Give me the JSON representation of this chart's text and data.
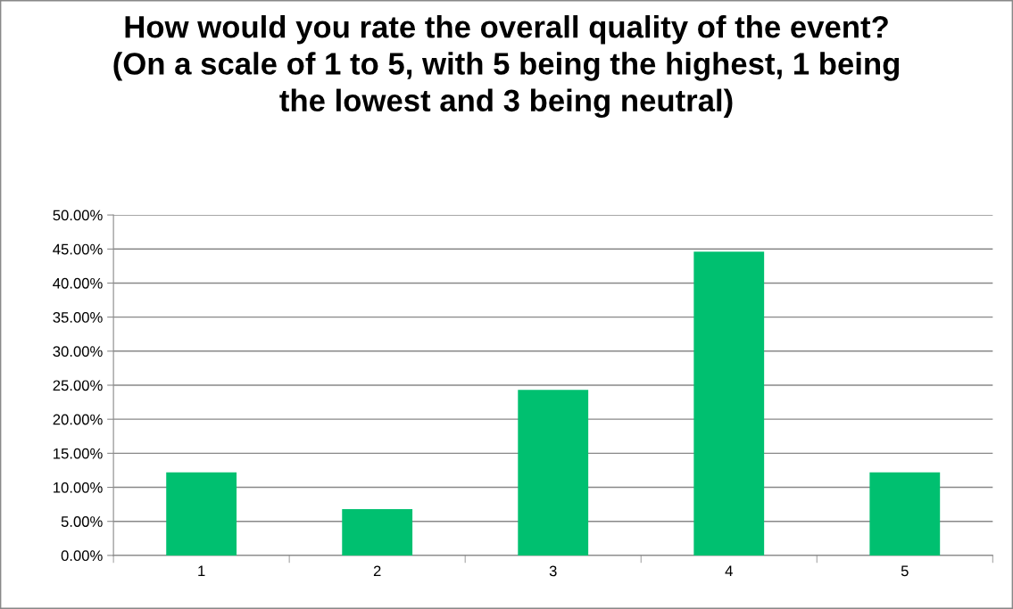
{
  "chart_data": {
    "type": "bar",
    "title": "How would you rate the overall quality of the event?\n(On a scale of 1 to 5, with 5 being the highest, 1 being\nthe lowest and 3 being neutral)",
    "categories": [
      "1",
      "2",
      "3",
      "4",
      "5"
    ],
    "values": [
      12.2,
      6.8,
      24.3,
      44.6,
      12.2
    ],
    "color": "#00c070",
    "ylim": [
      0,
      50
    ],
    "yticks": [
      {
        "value": 0,
        "label": "0.00%"
      },
      {
        "value": 5,
        "label": "5.00%"
      },
      {
        "value": 10,
        "label": "10.00%"
      },
      {
        "value": 15,
        "label": "15.00%"
      },
      {
        "value": 20,
        "label": "20.00%"
      },
      {
        "value": 25,
        "label": "25.00%"
      },
      {
        "value": 30,
        "label": "30.00%"
      },
      {
        "value": 35,
        "label": "35.00%"
      },
      {
        "value": 40,
        "label": "40.00%"
      },
      {
        "value": 45,
        "label": "45.00%"
      },
      {
        "value": 50,
        "label": "50.00%"
      }
    ],
    "grid": "y",
    "legend": false
  }
}
